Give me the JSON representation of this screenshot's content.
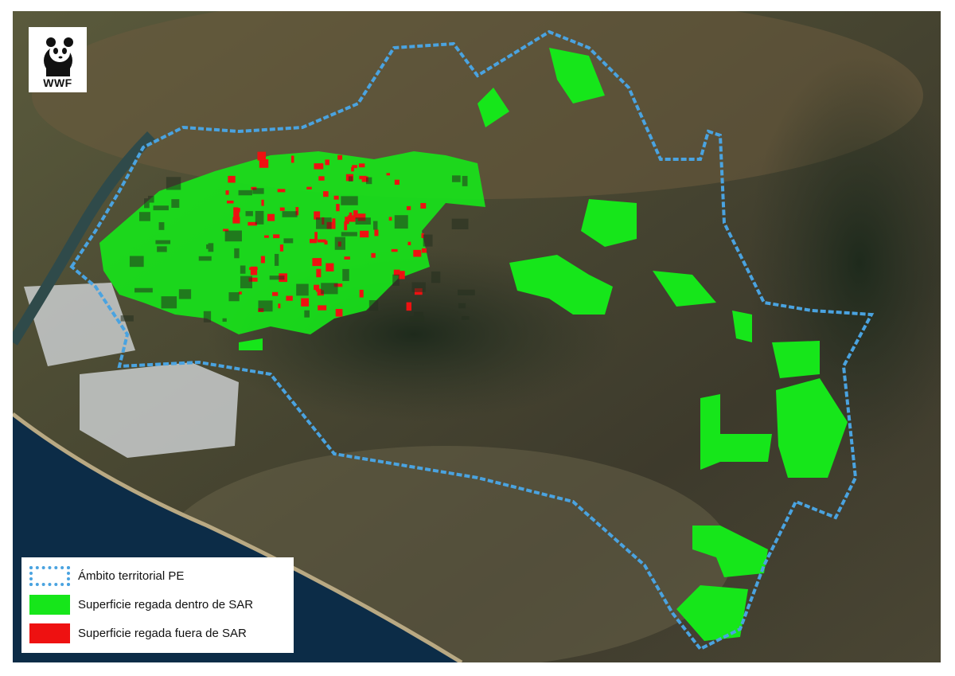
{
  "logo": {
    "text": "WWF",
    "icon": "panda-icon"
  },
  "legend": {
    "items": [
      {
        "label": "Ámbito territorial PE",
        "symbol": "dashed-outline",
        "color": "#4aa3e0"
      },
      {
        "label": "Superficie regada dentro de SAR",
        "symbol": "fill",
        "color": "#16e61a"
      },
      {
        "label": "Superficie regada fuera de SAR",
        "symbol": "fill",
        "color": "#ee1111"
      }
    ]
  },
  "colors": {
    "boundary": "#4aa3e0",
    "inside": "#16e61a",
    "outside": "#ee1111",
    "sea": "#0c2c47"
  }
}
